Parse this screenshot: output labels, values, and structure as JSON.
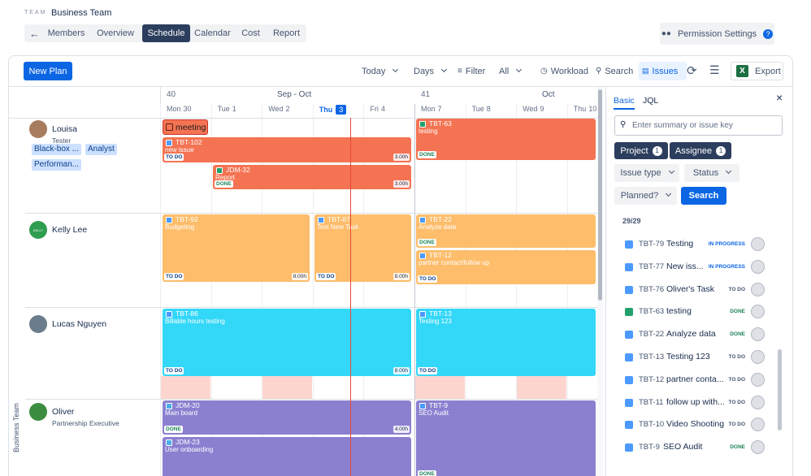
{
  "header": {
    "team_label": "TEAM",
    "team_name": "Business Team",
    "tabs": [
      {
        "label": "Members",
        "active": false
      },
      {
        "label": "Overview",
        "active": false
      },
      {
        "label": "Schedule",
        "active": true
      },
      {
        "label": "Calendar",
        "active": false
      },
      {
        "label": "Cost",
        "active": false
      },
      {
        "label": "Report",
        "active": false
      }
    ],
    "permission_settings": "Permission Settings"
  },
  "toolbar": {
    "new_plan": "New Plan",
    "today": "Today",
    "days": "Days",
    "filter": "Filter",
    "all": "All",
    "workload": "Workload",
    "search": "Search",
    "issues": "Issues",
    "export": "Export"
  },
  "timeline": {
    "weeks": [
      {
        "number": "40",
        "label": "Sep - Oct"
      },
      {
        "number": "41",
        "label": "Oct"
      }
    ],
    "days": [
      {
        "name": "Mon",
        "date": "30",
        "today": false
      },
      {
        "name": "Tue",
        "date": "1",
        "today": false
      },
      {
        "name": "Wed",
        "date": "2",
        "today": false
      },
      {
        "name": "Thu",
        "date": "3",
        "today": true
      },
      {
        "name": "Fri",
        "date": "4",
        "today": false
      },
      {
        "name": "Mon",
        "date": "7",
        "today": false
      },
      {
        "name": "Tue",
        "date": "8",
        "today": false
      },
      {
        "name": "Wed",
        "date": "9",
        "today": false
      },
      {
        "name": "Thu",
        "date": "10",
        "today": false
      }
    ],
    "group_label": "Business Team"
  },
  "resources": [
    {
      "name": "Louisa",
      "role": "Tester",
      "tags": [
        "Black-box ...",
        "Analyst",
        "Performan..."
      ],
      "avatar_color": "#a77b5e",
      "color": "#f47352",
      "events": [
        {
          "icon": "event",
          "title": "meeting"
        },
        {
          "icon": "task",
          "key": "TBT-102",
          "title": "new issue",
          "status": "TO DO",
          "status_color": "#0c3f8a",
          "hours": "3.00h"
        },
        {
          "icon": "story",
          "key": "JDM-32",
          "title": "Report",
          "status": "DONE",
          "status_color": "#1f845a",
          "hours": "3.00h"
        },
        {
          "icon": "story",
          "key": "TBT-63",
          "title": "testing",
          "status": "DONE",
          "status_color": "#1f845a"
        }
      ]
    },
    {
      "name": "Kelly Lee",
      "avatar_label": "KELLY",
      "avatar_color": "#2e9d4f",
      "color": "#fdbd6b",
      "events": [
        {
          "icon": "task",
          "key": "TBT-92",
          "title": "Budgeting",
          "status": "TO DO",
          "status_color": "#0c3f8a",
          "hours": "8.00h"
        },
        {
          "icon": "task",
          "key": "TBT-87",
          "title": "Test New Task",
          "status": "TO DO",
          "status_color": "#0c3f8a",
          "hours": "8.00h"
        },
        {
          "icon": "task",
          "key": "TBT-22",
          "title": "Analyze data",
          "status": "DONE",
          "status_color": "#1f845a"
        },
        {
          "icon": "task",
          "key": "TBT-12",
          "title": "partner contact/follow up",
          "status": "TO DO",
          "status_color": "#0c3f8a"
        }
      ]
    },
    {
      "name": "Lucas Nguyen",
      "avatar_color": "#6b7d8c",
      "color": "#33d7f8",
      "events": [
        {
          "icon": "task",
          "key": "TBT-86",
          "title": "Billable hours testing",
          "status": "TO DO",
          "status_color": "#0c3f8a",
          "hours": "8.00h"
        },
        {
          "icon": "task",
          "key": "TBT-13",
          "title": "Testing 123",
          "status": "TO DO",
          "status_color": "#0c3f8a"
        }
      ]
    },
    {
      "name": "Oliver",
      "role": "Partnership Executive",
      "avatar_color": "#3c8d40",
      "color": "#8b80d0",
      "events": [
        {
          "icon": "subtask",
          "key": "JDM-20",
          "title": "Main board",
          "status": "DONE",
          "status_color": "#1f845a",
          "hours": "4.00h"
        },
        {
          "icon": "subtask",
          "key": "JDM-23",
          "title": "User onboarding"
        },
        {
          "icon": "task",
          "key": "TBT-9",
          "title": "SEO Audit",
          "status": "DONE",
          "status_color": "#1f845a"
        }
      ]
    }
  ],
  "sidebar": {
    "tabs": [
      "Basic",
      "JQL"
    ],
    "search_placeholder": "Enter summary or issue key",
    "project": {
      "label": "Project",
      "count": "1"
    },
    "assignee": {
      "label": "Assignee",
      "count": "1"
    },
    "issue_type": "Issue type",
    "status": "Status",
    "planned": "Planned?",
    "search_button": "Search",
    "result_count": "29/29",
    "issues": [
      {
        "icon": "task",
        "key": "TBT-79",
        "title": "Testing",
        "status": "IN PROGRESS",
        "status_color": "#0c66e4"
      },
      {
        "icon": "task",
        "key": "TBT-77",
        "title": "New iss...",
        "status": "IN PROGRESS",
        "status_color": "#0c66e4"
      },
      {
        "icon": "task",
        "key": "TBT-76",
        "title": "Oliver's Task",
        "status": "TO DO",
        "status_color": "#44546f"
      },
      {
        "icon": "story",
        "key": "TBT-63",
        "title": "testing",
        "status": "DONE",
        "status_color": "#1f845a"
      },
      {
        "icon": "task",
        "key": "TBT-22",
        "title": "Analyze data",
        "status": "DONE",
        "status_color": "#1f845a"
      },
      {
        "icon": "task",
        "key": "TBT-13",
        "title": "Testing 123",
        "status": "TO DO",
        "status_color": "#44546f"
      },
      {
        "icon": "task",
        "key": "TBT-12",
        "title": "partner conta...",
        "status": "TO DO",
        "status_color": "#44546f"
      },
      {
        "icon": "task",
        "key": "TBT-11",
        "title": "follow up with...",
        "status": "TO DO",
        "status_color": "#44546f"
      },
      {
        "icon": "task",
        "key": "TBT-10",
        "title": "Video Shooting",
        "status": "TO DO",
        "status_color": "#44546f"
      },
      {
        "icon": "task",
        "key": "TBT-9",
        "title": "SEO Audit",
        "status": "DONE",
        "status_color": "#1f845a"
      }
    ]
  }
}
